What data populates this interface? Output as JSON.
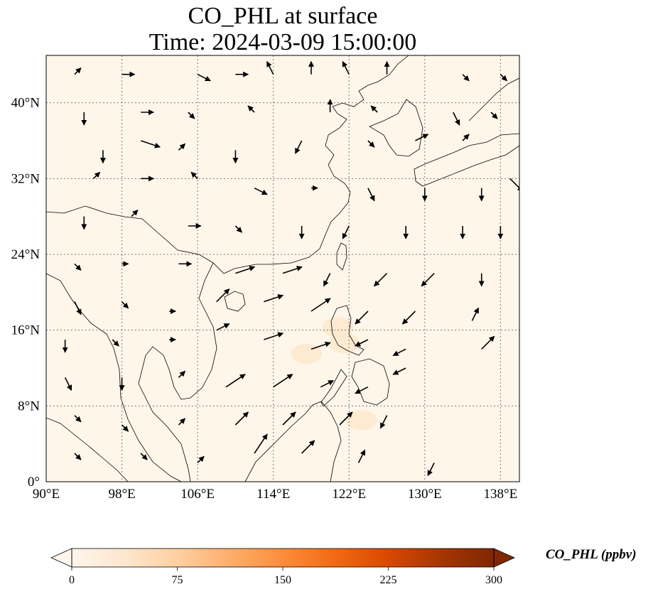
{
  "title": {
    "line1": "CO_PHL at surface",
    "line2": "Time: 2024-03-09 15:00:00"
  },
  "map": {
    "variable": "CO_PHL",
    "background_color": "#fff6ea",
    "hotspot_color": "#fde7cc",
    "extent": {
      "lon": [
        90,
        140
      ],
      "lat": [
        0,
        45
      ]
    },
    "gridlines": true,
    "lon_ticks": [
      {
        "value": 90,
        "label": "90°E"
      },
      {
        "value": 98,
        "label": "98°E"
      },
      {
        "value": 106,
        "label": "106°E"
      },
      {
        "value": 114,
        "label": "114°E"
      },
      {
        "value": 122,
        "label": "122°E"
      },
      {
        "value": 130,
        "label": "130°E"
      },
      {
        "value": 138,
        "label": "138°E"
      }
    ],
    "lat_ticks": [
      {
        "value": 0,
        "label": "0°"
      },
      {
        "value": 8,
        "label": "8°N"
      },
      {
        "value": 16,
        "label": "16°N"
      },
      {
        "value": 24,
        "label": "24°N"
      },
      {
        "value": 32,
        "label": "32°N"
      },
      {
        "value": 40,
        "label": "40°N"
      }
    ],
    "hotspots": [
      {
        "lon": 120.8,
        "lat": 16.3
      },
      {
        "lon": 121.5,
        "lat": 14.6
      },
      {
        "lon": 117.5,
        "lat": 13.5
      },
      {
        "lon": 123.3,
        "lat": 6.5
      }
    ],
    "wind_vectors": [
      {
        "lon": 93,
        "lat": 43,
        "u": 1,
        "v": 1
      },
      {
        "lon": 98,
        "lat": 43,
        "u": 2,
        "v": 0
      },
      {
        "lon": 106,
        "lat": 43,
        "u": 2,
        "v": -1
      },
      {
        "lon": 110,
        "lat": 43,
        "u": 2,
        "v": 0
      },
      {
        "lon": 114,
        "lat": 43,
        "u": -1,
        "v": 2
      },
      {
        "lon": 118,
        "lat": 43,
        "u": 0,
        "v": 2
      },
      {
        "lon": 122,
        "lat": 43,
        "u": -1,
        "v": 2
      },
      {
        "lon": 126,
        "lat": 43,
        "u": 0,
        "v": 2
      },
      {
        "lon": 134,
        "lat": 43,
        "u": 1,
        "v": -1
      },
      {
        "lon": 138,
        "lat": 43,
        "u": 1,
        "v": -1
      },
      {
        "lon": 94,
        "lat": 39,
        "u": 0,
        "v": -2
      },
      {
        "lon": 100,
        "lat": 39,
        "u": 2,
        "v": 0
      },
      {
        "lon": 105,
        "lat": 39,
        "u": 1,
        "v": -1
      },
      {
        "lon": 112,
        "lat": 39,
        "u": -1,
        "v": 1
      },
      {
        "lon": 120,
        "lat": 39,
        "u": 0,
        "v": 2
      },
      {
        "lon": 125,
        "lat": 39,
        "u": -1,
        "v": 1
      },
      {
        "lon": 133,
        "lat": 39,
        "u": 1,
        "v": -2
      },
      {
        "lon": 137,
        "lat": 39,
        "u": 1,
        "v": -1
      },
      {
        "lon": 96,
        "lat": 35,
        "u": 0,
        "v": -2
      },
      {
        "lon": 100,
        "lat": 36,
        "u": 3,
        "v": -1
      },
      {
        "lon": 104,
        "lat": 35,
        "u": 1,
        "v": 1
      },
      {
        "lon": 110,
        "lat": 35,
        "u": 0,
        "v": -2
      },
      {
        "lon": 117,
        "lat": 36,
        "u": -1,
        "v": -2
      },
      {
        "lon": 124,
        "lat": 36,
        "u": 1,
        "v": -1
      },
      {
        "lon": 129,
        "lat": 36,
        "u": 2,
        "v": 1
      },
      {
        "lon": 134,
        "lat": 36,
        "u": 1,
        "v": 1
      },
      {
        "lon": 95,
        "lat": 32,
        "u": 1,
        "v": 1
      },
      {
        "lon": 100,
        "lat": 32,
        "u": 2,
        "v": 0
      },
      {
        "lon": 106,
        "lat": 32,
        "u": -1,
        "v": 1
      },
      {
        "lon": 112,
        "lat": 31,
        "u": 2,
        "v": -1
      },
      {
        "lon": 118,
        "lat": 31,
        "u": 1,
        "v": 0
      },
      {
        "lon": 124,
        "lat": 31,
        "u": 1,
        "v": -2
      },
      {
        "lon": 130,
        "lat": 31,
        "u": 0,
        "v": -2
      },
      {
        "lon": 136,
        "lat": 31,
        "u": 0,
        "v": -2
      },
      {
        "lon": 139,
        "lat": 32,
        "u": 2,
        "v": -2
      },
      {
        "lon": 94,
        "lat": 28,
        "u": 0,
        "v": -2
      },
      {
        "lon": 99,
        "lat": 28,
        "u": 1,
        "v": 1
      },
      {
        "lon": 105,
        "lat": 27,
        "u": 2,
        "v": 0
      },
      {
        "lon": 110,
        "lat": 27,
        "u": 1,
        "v": -1
      },
      {
        "lon": 117,
        "lat": 27,
        "u": 0,
        "v": -2
      },
      {
        "lon": 122,
        "lat": 27,
        "u": -1,
        "v": -2
      },
      {
        "lon": 128,
        "lat": 27,
        "u": 0,
        "v": -2
      },
      {
        "lon": 134,
        "lat": 27,
        "u": 0,
        "v": -2
      },
      {
        "lon": 138,
        "lat": 27,
        "u": 0,
        "v": -2
      },
      {
        "lon": 93,
        "lat": 23,
        "u": 1,
        "v": -1
      },
      {
        "lon": 98,
        "lat": 23,
        "u": 1,
        "v": 0
      },
      {
        "lon": 104,
        "lat": 23,
        "u": 2,
        "v": 0
      },
      {
        "lon": 110,
        "lat": 22,
        "u": 3,
        "v": 1
      },
      {
        "lon": 115,
        "lat": 22,
        "u": 3,
        "v": 1
      },
      {
        "lon": 120,
        "lat": 22,
        "u": -1,
        "v": -2
      },
      {
        "lon": 126,
        "lat": 22,
        "u": -2,
        "v": -2
      },
      {
        "lon": 131,
        "lat": 22,
        "u": -2,
        "v": -2
      },
      {
        "lon": 136,
        "lat": 22,
        "u": 0,
        "v": -2
      },
      {
        "lon": 93,
        "lat": 19,
        "u": 1,
        "v": -2
      },
      {
        "lon": 98,
        "lat": 19,
        "u": 1,
        "v": -1
      },
      {
        "lon": 103,
        "lat": 18,
        "u": 1,
        "v": 0
      },
      {
        "lon": 108,
        "lat": 19,
        "u": 2,
        "v": 2
      },
      {
        "lon": 113,
        "lat": 19,
        "u": 3,
        "v": 1
      },
      {
        "lon": 118,
        "lat": 18,
        "u": 3,
        "v": 2
      },
      {
        "lon": 124,
        "lat": 18,
        "u": -2,
        "v": -2
      },
      {
        "lon": 129,
        "lat": 18,
        "u": -2,
        "v": -2
      },
      {
        "lon": 135,
        "lat": 17,
        "u": 1,
        "v": 2
      },
      {
        "lon": 92,
        "lat": 15,
        "u": 0,
        "v": -2
      },
      {
        "lon": 97,
        "lat": 15,
        "u": 1,
        "v": -1
      },
      {
        "lon": 103,
        "lat": 15,
        "u": 1,
        "v": 0
      },
      {
        "lon": 108,
        "lat": 16,
        "u": 2,
        "v": 1
      },
      {
        "lon": 113,
        "lat": 15,
        "u": 3,
        "v": 1
      },
      {
        "lon": 118,
        "lat": 14,
        "u": 3,
        "v": 1
      },
      {
        "lon": 124,
        "lat": 15,
        "u": -2,
        "v": -1
      },
      {
        "lon": 128,
        "lat": 14,
        "u": -2,
        "v": -1
      },
      {
        "lon": 136,
        "lat": 14,
        "u": 2,
        "v": 2
      },
      {
        "lon": 92,
        "lat": 11,
        "u": 1,
        "v": -2
      },
      {
        "lon": 98,
        "lat": 11,
        "u": 0,
        "v": -2
      },
      {
        "lon": 104,
        "lat": 11,
        "u": 1,
        "v": 1
      },
      {
        "lon": 109,
        "lat": 10,
        "u": 3,
        "v": 2
      },
      {
        "lon": 114,
        "lat": 10,
        "u": 3,
        "v": 2
      },
      {
        "lon": 119,
        "lat": 10,
        "u": 2,
        "v": 1
      },
      {
        "lon": 124,
        "lat": 10,
        "u": -2,
        "v": -1
      },
      {
        "lon": 128,
        "lat": 12,
        "u": -2,
        "v": -1
      },
      {
        "lon": 93,
        "lat": 7,
        "u": 1,
        "v": -1
      },
      {
        "lon": 98,
        "lat": 6,
        "u": 1,
        "v": -1
      },
      {
        "lon": 104,
        "lat": 6,
        "u": 1,
        "v": 1
      },
      {
        "lon": 110,
        "lat": 6,
        "u": 2,
        "v": 2
      },
      {
        "lon": 115,
        "lat": 6,
        "u": 2,
        "v": 2
      },
      {
        "lon": 121,
        "lat": 6,
        "u": 2,
        "v": 2
      },
      {
        "lon": 126,
        "lat": 7,
        "u": -1,
        "v": -2
      },
      {
        "lon": 93,
        "lat": 3,
        "u": 1,
        "v": -1
      },
      {
        "lon": 100,
        "lat": 3,
        "u": 1,
        "v": -1
      },
      {
        "lon": 106,
        "lat": 2,
        "u": 1,
        "v": 1
      },
      {
        "lon": 112,
        "lat": 3,
        "u": 2,
        "v": 3
      },
      {
        "lon": 117,
        "lat": 3,
        "u": 2,
        "v": 2
      },
      {
        "lon": 123,
        "lat": 2,
        "u": 1,
        "v": 2
      },
      {
        "lon": 131,
        "lat": 2,
        "u": -1,
        "v": -2
      }
    ]
  },
  "colorbar": {
    "label": "CO_PHL (ppbv)",
    "min": 0,
    "max": 300,
    "stops": [
      "#fff5eb",
      "#fee6ce",
      "#fdd0a2",
      "#fdae6b",
      "#fd8d3c",
      "#f16913",
      "#d94801",
      "#a63603",
      "#7f2704"
    ],
    "ticks": [
      {
        "value": 0,
        "label": "0"
      },
      {
        "value": 75,
        "label": "75"
      },
      {
        "value": 150,
        "label": "150"
      },
      {
        "value": 225,
        "label": "225"
      },
      {
        "value": 300,
        "label": "300"
      }
    ]
  }
}
